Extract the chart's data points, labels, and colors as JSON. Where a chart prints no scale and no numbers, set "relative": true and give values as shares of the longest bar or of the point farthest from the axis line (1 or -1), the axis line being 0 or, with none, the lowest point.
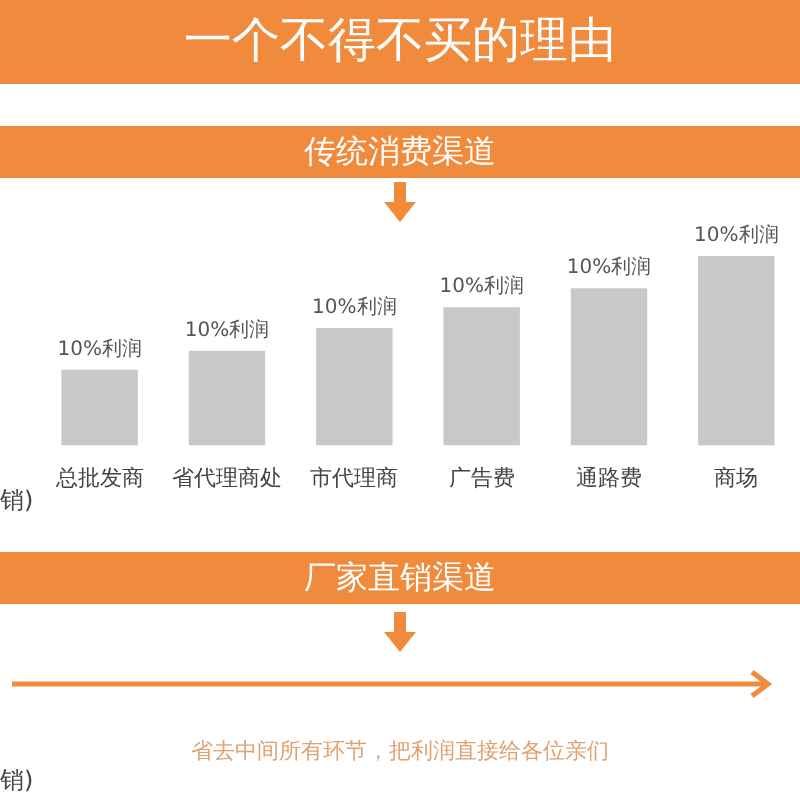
{
  "chart_data": {
    "type": "bar",
    "title": "一个不得不买的理由",
    "subtitle": "传统消费渠道",
    "categories": [
      "总批发商",
      "省代理商处",
      "市代理商",
      "广告费",
      "通路费",
      "商场"
    ],
    "values": [
      0.4,
      0.5,
      0.62,
      0.73,
      0.83,
      1
    ],
    "color": "#c8c8c8",
    "relative": true,
    "annotations": [
      "厂家直销渠道",
      "省去中间所有环节，把利润直接给各位亲们",
      "销)",
      "销)",
      {
        "text": "10%利润",
        "x": "总批发商",
        "y": 0.4
      },
      {
        "text": "10%利润",
        "x": "省代理商处",
        "y": 0.5
      },
      {
        "text": "10%利润",
        "x": "市代理商",
        "y": 0.62
      },
      {
        "text": "10%利润",
        "x": "广告费",
        "y": 0.73
      },
      {
        "text": "10%利润",
        "x": "通路费",
        "y": 0.83
      },
      {
        "text": "10%利润",
        "x": "商场",
        "y": 1
      }
    ],
    "grid": false,
    "legend": false
  }
}
